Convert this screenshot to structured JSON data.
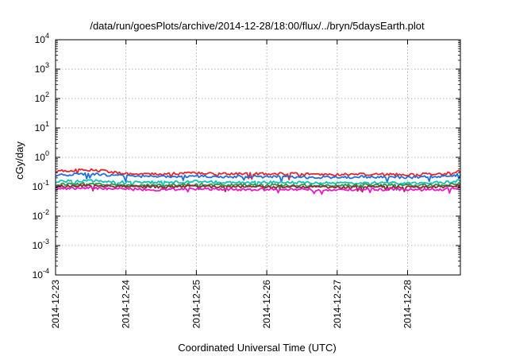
{
  "chart_data": {
    "type": "line",
    "title": "/data/run/goesPlots/archive/2014-12-28/18:00/flux/../bryn/5daysEarth.plot",
    "xlabel": "Coordinated Universal Time (UTC)",
    "ylabel": "cGy/day",
    "yscale": "log",
    "ylim": [
      0.0001,
      10000
    ],
    "xlim": [
      "2014-12-23",
      "2014-12-28T18:00"
    ],
    "grid": true,
    "x_ticks": [
      "2014-12-23",
      "2014-12-24",
      "2014-12-25",
      "2014-12-26",
      "2014-12-27",
      "2014-12-28"
    ],
    "y_ticks": [
      {
        "value": 0.0001,
        "base": "10",
        "exp": "-4"
      },
      {
        "value": 0.001,
        "base": "10",
        "exp": "-3"
      },
      {
        "value": 0.01,
        "base": "10",
        "exp": "-2"
      },
      {
        "value": 0.1,
        "base": "10",
        "exp": "-1"
      },
      {
        "value": 1,
        "base": "10",
        "exp": "0"
      },
      {
        "value": 10,
        "base": "10",
        "exp": "1"
      },
      {
        "value": 100,
        "base": "10",
        "exp": "2"
      },
      {
        "value": 1000,
        "base": "10",
        "exp": "3"
      },
      {
        "value": 10000,
        "base": "10",
        "exp": "4"
      }
    ],
    "series": [
      {
        "color": "#e8262f",
        "x": [
          "2014-12-23",
          "2014-12-23T12:00",
          "2014-12-24",
          "2014-12-24T12:00",
          "2014-12-25",
          "2014-12-25T12:00",
          "2014-12-26",
          "2014-12-26T12:00",
          "2014-12-27",
          "2014-12-27T12:00",
          "2014-12-28",
          "2014-12-28T12:00",
          "2014-12-28T18:00"
        ],
        "values": [
          0.34,
          0.38,
          0.28,
          0.27,
          0.29,
          0.27,
          0.28,
          0.27,
          0.26,
          0.27,
          0.26,
          0.27,
          0.33
        ]
      },
      {
        "color": "#1f6fe0",
        "x": [
          "2014-12-23",
          "2014-12-23T12:00",
          "2014-12-24",
          "2014-12-24T12:00",
          "2014-12-25",
          "2014-12-25T12:00",
          "2014-12-26",
          "2014-12-26T12:00",
          "2014-12-27",
          "2014-12-27T12:00",
          "2014-12-28",
          "2014-12-28T12:00",
          "2014-12-28T18:00"
        ],
        "values": [
          0.25,
          0.27,
          0.23,
          0.22,
          0.23,
          0.22,
          0.22,
          0.21,
          0.21,
          0.22,
          0.21,
          0.22,
          0.26
        ]
      },
      {
        "color": "#16c0b8",
        "x": [
          "2014-12-23",
          "2014-12-23T12:00",
          "2014-12-24",
          "2014-12-24T12:00",
          "2014-12-25",
          "2014-12-25T12:00",
          "2014-12-26",
          "2014-12-26T12:00",
          "2014-12-27",
          "2014-12-27T12:00",
          "2014-12-28",
          "2014-12-28T12:00",
          "2014-12-28T18:00"
        ],
        "values": [
          0.15,
          0.16,
          0.14,
          0.14,
          0.15,
          0.14,
          0.14,
          0.14,
          0.13,
          0.14,
          0.13,
          0.14,
          0.16
        ]
      },
      {
        "color": "#2a9a4a",
        "x": [
          "2014-12-23",
          "2014-12-23T12:00",
          "2014-12-24",
          "2014-12-24T12:00",
          "2014-12-25",
          "2014-12-25T12:00",
          "2014-12-26",
          "2014-12-26T12:00",
          "2014-12-27",
          "2014-12-27T12:00",
          "2014-12-28",
          "2014-12-28T12:00",
          "2014-12-28T18:00"
        ],
        "values": [
          0.12,
          0.125,
          0.115,
          0.11,
          0.12,
          0.115,
          0.115,
          0.11,
          0.11,
          0.115,
          0.11,
          0.115,
          0.13
        ]
      },
      {
        "color": "#8c2d2d",
        "x": [
          "2014-12-23",
          "2014-12-23T12:00",
          "2014-12-24",
          "2014-12-24T12:00",
          "2014-12-25",
          "2014-12-25T12:00",
          "2014-12-26",
          "2014-12-26T12:00",
          "2014-12-27",
          "2014-12-27T12:00",
          "2014-12-28",
          "2014-12-28T12:00",
          "2014-12-28T18:00"
        ],
        "values": [
          0.105,
          0.11,
          0.1,
          0.098,
          0.102,
          0.1,
          0.1,
          0.098,
          0.097,
          0.1,
          0.097,
          0.1,
          0.11
        ]
      },
      {
        "color": "#ee18c8",
        "x": [
          "2014-12-23",
          "2014-12-23T12:00",
          "2014-12-24",
          "2014-12-24T12:00",
          "2014-12-25",
          "2014-12-25T12:00",
          "2014-12-26",
          "2014-12-26T12:00",
          "2014-12-27",
          "2014-12-27T12:00",
          "2014-12-28",
          "2014-12-28T12:00",
          "2014-12-28T18:00"
        ],
        "values": [
          0.085,
          0.09,
          0.082,
          0.08,
          0.084,
          0.082,
          0.082,
          0.08,
          0.079,
          0.082,
          0.079,
          0.082,
          0.09
        ]
      }
    ]
  }
}
